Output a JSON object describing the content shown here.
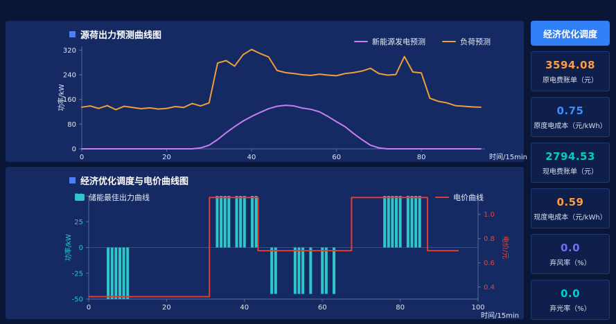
{
  "app": {
    "bg": "#0a1636",
    "panel_bg": "#152a62",
    "card_bg": "#0f1f4b"
  },
  "sidebar": {
    "button_label": "经济优化调度",
    "button_color": "#2f7ff7",
    "cards": [
      {
        "value": "3594.08",
        "label": "原电费账单（元）",
        "color": "#ff9c3f"
      },
      {
        "value": "0.75",
        "label": "原度电成本（元/kWh）",
        "color": "#3e8ef7"
      },
      {
        "value": "2794.53",
        "label": "现电费账单（元）",
        "color": "#00cfc4"
      },
      {
        "value": "0.59",
        "label": "现度电成本（元/kWh）",
        "color": "#ff9c3f"
      },
      {
        "value": "0.0",
        "label": "弃风率（%）",
        "color": "#6f6ff5"
      },
      {
        "value": "0.0",
        "label": "弃光率（%）",
        "color": "#00cfd4"
      }
    ]
  },
  "chart_data": [
    {
      "type": "line",
      "title": "源荷出力预测曲线图",
      "xlabel": "时间/15min",
      "ylabel": "功率/kW",
      "xlim": [
        0,
        95
      ],
      "ylim": [
        0,
        332
      ],
      "xticks": [
        0,
        20,
        40,
        60,
        80
      ],
      "yticks": [
        0,
        80,
        160,
        240,
        320
      ],
      "legend_position": "top-right",
      "grid": false,
      "x": [
        0,
        2,
        4,
        6,
        8,
        10,
        12,
        14,
        16,
        18,
        20,
        22,
        24,
        26,
        28,
        30,
        32,
        34,
        36,
        38,
        40,
        42,
        44,
        46,
        48,
        50,
        52,
        54,
        56,
        58,
        60,
        62,
        64,
        66,
        68,
        70,
        72,
        74,
        76,
        78,
        80,
        82,
        84,
        86,
        88,
        90,
        92,
        94
      ],
      "series": [
        {
          "name": "新能源发电预测",
          "color": "#c77ef2",
          "values": [
            0,
            0,
            0,
            0,
            0,
            0,
            0,
            0,
            0,
            0,
            0,
            0,
            0,
            0,
            3,
            12,
            30,
            52,
            72,
            90,
            105,
            118,
            130,
            138,
            141,
            139,
            132,
            128,
            120,
            105,
            88,
            72,
            50,
            30,
            12,
            3,
            0,
            0,
            0,
            0,
            0,
            0,
            0,
            0,
            0,
            0,
            0,
            0
          ]
        },
        {
          "name": "负荷预测",
          "color": "#ef9f39",
          "values": [
            135,
            139,
            131,
            140,
            127,
            138,
            134,
            130,
            133,
            129,
            131,
            137,
            134,
            147,
            139,
            149,
            278,
            286,
            268,
            305,
            322,
            309,
            298,
            254,
            247,
            244,
            240,
            238,
            242,
            239,
            237,
            244,
            247,
            252,
            261,
            244,
            239,
            241,
            299,
            249,
            246,
            164,
            154,
            149,
            140,
            138,
            136,
            135
          ]
        }
      ]
    },
    {
      "type": "bar+line",
      "title": "经济优化调度与电价曲线图",
      "xlabel": "时间/15min",
      "ylabel_left": "功率/kW",
      "ylabel_right": "电价/元",
      "xlim": [
        0,
        100
      ],
      "ylim_left": [
        -50,
        50
      ],
      "ylim_right": [
        0.3,
        1.153
      ],
      "xticks": [
        0,
        20,
        40,
        60,
        80,
        100
      ],
      "yticks_left": [
        -50,
        -25,
        0,
        25,
        50
      ],
      "yticks_right": [
        0.4,
        0.6,
        0.8,
        1.0
      ],
      "axis_left_color": "#2ec7c9",
      "axis_right_color": "#e0483f",
      "grid": false,
      "bars": {
        "name": "储能最佳出力曲线",
        "color": "#2ec7c9",
        "points": [
          {
            "x": 5,
            "v": -50
          },
          {
            "x": 6,
            "v": -50
          },
          {
            "x": 7,
            "v": -50
          },
          {
            "x": 8,
            "v": -50
          },
          {
            "x": 9,
            "v": -50
          },
          {
            "x": 10,
            "v": -50
          },
          {
            "x": 33,
            "v": 50
          },
          {
            "x": 34,
            "v": 50
          },
          {
            "x": 35,
            "v": 50
          },
          {
            "x": 36,
            "v": 50
          },
          {
            "x": 38,
            "v": 50
          },
          {
            "x": 39,
            "v": 50
          },
          {
            "x": 40,
            "v": 50
          },
          {
            "x": 42,
            "v": 50
          },
          {
            "x": 43,
            "v": 50
          },
          {
            "x": 47,
            "v": -45
          },
          {
            "x": 48,
            "v": -45
          },
          {
            "x": 53,
            "v": -45
          },
          {
            "x": 54,
            "v": -45
          },
          {
            "x": 55,
            "v": -45
          },
          {
            "x": 57,
            "v": -45
          },
          {
            "x": 60,
            "v": -45
          },
          {
            "x": 61,
            "v": -45
          },
          {
            "x": 63,
            "v": -45
          },
          {
            "x": 76,
            "v": 50
          },
          {
            "x": 77,
            "v": 50
          },
          {
            "x": 78,
            "v": 50
          },
          {
            "x": 79,
            "v": 50
          },
          {
            "x": 80,
            "v": 50
          },
          {
            "x": 82,
            "v": 50
          },
          {
            "x": 83,
            "v": 50
          },
          {
            "x": 84,
            "v": 50
          },
          {
            "x": 85,
            "v": 50
          }
        ]
      },
      "price_line": {
        "name": "电价曲线",
        "color": "#e23c35",
        "points": [
          [
            0,
            0.32
          ],
          [
            31,
            0.32
          ],
          [
            31,
            1.14
          ],
          [
            43.5,
            1.14
          ],
          [
            43.5,
            0.7
          ],
          [
            67.5,
            0.7
          ],
          [
            67.5,
            1.14
          ],
          [
            87,
            1.14
          ],
          [
            87,
            0.7
          ],
          [
            95,
            0.7
          ]
        ]
      }
    }
  ]
}
